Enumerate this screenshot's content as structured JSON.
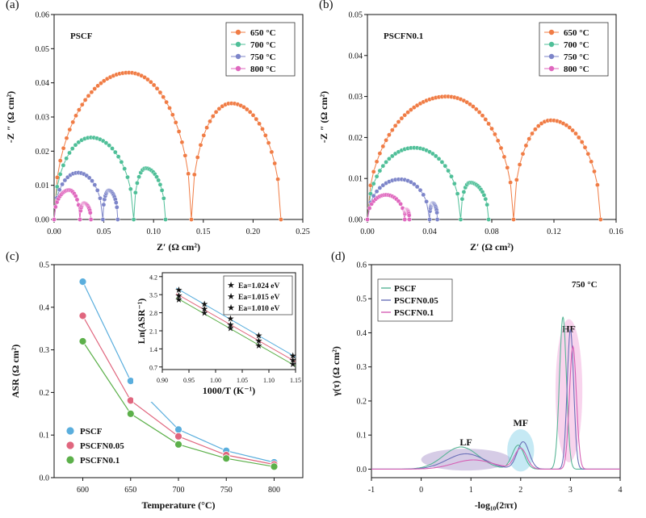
{
  "chart_data": [
    {
      "type": "scatter",
      "panel_label": "(a)",
      "sample_label": "PSCF",
      "xlabel": "Z′ (Ω cm²)",
      "ylabel": "-Z ″ (Ω cm²)",
      "xlim": [
        0,
        0.25
      ],
      "ylim": [
        0,
        0.06
      ],
      "xticks": [
        0.0,
        0.05,
        0.1,
        0.15,
        0.2,
        0.25
      ],
      "yticks": [
        0.0,
        0.01,
        0.02,
        0.03,
        0.04,
        0.05,
        0.06
      ],
      "legend_position": "top-right",
      "series": [
        {
          "name": "650 °C",
          "color": "#f07c45",
          "arcs": [
            {
              "x0": 0.0,
              "x1": 0.138,
              "h": 0.043,
              "xp": 0.075
            },
            {
              "x0": 0.138,
              "x1": 0.228,
              "h": 0.034,
              "xp": 0.178
            }
          ]
        },
        {
          "name": "700 °C",
          "color": "#4fbf98",
          "arcs": [
            {
              "x0": 0.0,
              "x1": 0.08,
              "h": 0.024,
              "xp": 0.037
            },
            {
              "x0": 0.08,
              "x1": 0.112,
              "h": 0.015,
              "xp": 0.092
            }
          ]
        },
        {
          "name": "750 °C",
          "color": "#7d85c9",
          "arcs": [
            {
              "x0": 0.0,
              "x1": 0.049,
              "h": 0.0137,
              "xp": 0.024
            },
            {
              "x0": 0.049,
              "x1": 0.064,
              "h": 0.0085,
              "xp": 0.055
            }
          ]
        },
        {
          "name": "800 °C",
          "color": "#df67be",
          "arcs": [
            {
              "x0": 0.0,
              "x1": 0.026,
              "h": 0.0086,
              "xp": 0.015
            },
            {
              "x0": 0.026,
              "x1": 0.037,
              "h": 0.0048,
              "xp": 0.03
            }
          ]
        }
      ]
    },
    {
      "type": "scatter",
      "panel_label": "(b)",
      "sample_label": "PSCFN0.1",
      "xlabel": "Z′ (Ω cm²)",
      "ylabel": "-Z ″ (Ω cm²)",
      "xlim": [
        0,
        0.16
      ],
      "ylim": [
        0,
        0.05
      ],
      "xticks": [
        0.0,
        0.04,
        0.08,
        0.12,
        0.16
      ],
      "yticks": [
        0.0,
        0.01,
        0.02,
        0.03,
        0.04,
        0.05
      ],
      "legend_position": "top-right",
      "series": [
        {
          "name": "650 °C",
          "color": "#f07c45",
          "arcs": [
            {
              "x0": 0.0,
              "x1": 0.094,
              "h": 0.03,
              "xp": 0.051
            },
            {
              "x0": 0.094,
              "x1": 0.15,
              "h": 0.0242,
              "xp": 0.118
            }
          ]
        },
        {
          "name": "700 °C",
          "color": "#4fbf98",
          "arcs": [
            {
              "x0": 0.0,
              "x1": 0.06,
              "h": 0.0175,
              "xp": 0.03
            },
            {
              "x0": 0.06,
              "x1": 0.078,
              "h": 0.009,
              "xp": 0.066
            }
          ]
        },
        {
          "name": "750 °C",
          "color": "#7d85c9",
          "arcs": [
            {
              "x0": 0.0,
              "x1": 0.04,
              "h": 0.0098,
              "xp": 0.021
            },
            {
              "x0": 0.04,
              "x1": 0.045,
              "h": 0.004,
              "xp": 0.042
            }
          ]
        },
        {
          "name": "800 °C",
          "color": "#df67be",
          "arcs": [
            {
              "x0": 0.0,
              "x1": 0.024,
              "h": 0.006,
              "xp": 0.012
            },
            {
              "x0": 0.024,
              "x1": 0.027,
              "h": 0.0025,
              "xp": 0.025
            }
          ]
        }
      ]
    },
    {
      "type": "line",
      "panel_label": "(c)",
      "xlabel": "Temperature (°C)",
      "ylabel": "ASR (Ω cm²)",
      "xlim": [
        570,
        830
      ],
      "ylim": [
        0,
        0.5
      ],
      "xticks": [
        600,
        650,
        700,
        750,
        800
      ],
      "yticks": [
        0.0,
        0.1,
        0.2,
        0.3,
        0.4,
        0.5
      ],
      "x": [
        600,
        650,
        700,
        750,
        800
      ],
      "legend_position": "bottom-left",
      "series": [
        {
          "name": "PSCF",
          "color": "#5aaedd",
          "values": [
            0.46,
            0.227,
            0.113,
            0.063,
            0.036
          ]
        },
        {
          "name": "PSCFN0.05",
          "color": "#e0667e",
          "values": [
            0.38,
            0.181,
            0.097,
            0.053,
            0.031
          ]
        },
        {
          "name": "PSCFN0.1",
          "color": "#5cb04a",
          "values": [
            0.32,
            0.15,
            0.078,
            0.045,
            0.026
          ]
        }
      ],
      "inset": {
        "type": "line",
        "xlabel": "1000/T (K⁻¹)",
        "ylabel": "Ln(ASR⁻¹)",
        "xlim": [
          0.9,
          1.15
        ],
        "ylim": [
          0.6,
          4.35
        ],
        "xticks": [
          0.9,
          0.95,
          1.0,
          1.05,
          1.1,
          1.15
        ],
        "yticks": [
          0.7,
          1.4,
          2.1,
          2.8,
          3.5,
          4.2
        ],
        "x": [
          0.931,
          0.979,
          1.028,
          1.081,
          1.145
        ],
        "legend_position": "top-right",
        "series": [
          {
            "name": "Ea=1.024 eV",
            "color": "#5cb04a",
            "values": [
              3.3,
              2.79,
              2.2,
              1.52,
              0.8
            ]
          },
          {
            "name": "Ea=1.015 eV",
            "color": "#e0667e",
            "values": [
              3.46,
              2.95,
              2.33,
              1.71,
              0.96
            ]
          },
          {
            "name": "Ea=1.010 eV",
            "color": "#5aaedd",
            "values": [
              3.68,
              3.13,
              2.57,
              1.91,
              1.13
            ]
          }
        ]
      }
    },
    {
      "type": "line",
      "panel_label": "(d)",
      "xlabel": "-log₁₀(2πτ)",
      "ylabel": "γ(τ) (Ω cm²)",
      "xlim": [
        -1,
        4
      ],
      "ylim": [
        -0.025,
        0.6
      ],
      "xticks": [
        -1,
        0,
        1,
        2,
        3,
        4
      ],
      "yticks": [
        0.0,
        0.1,
        0.2,
        0.3,
        0.4,
        0.5,
        0.6
      ],
      "temperature_label": "750 °C",
      "legend_position": "top-left",
      "regions": [
        {
          "label": "LF",
          "color": "#a58fc8"
        },
        {
          "label": "MF",
          "color": "#7fcfe6"
        },
        {
          "label": "HF",
          "color": "#f0a0d8"
        }
      ],
      "series": [
        {
          "name": "PSCF",
          "color": "#58b596",
          "peaks": [
            [
              0.8,
              0.065,
              0.35
            ],
            [
              1.95,
              0.07,
              0.12
            ],
            [
              2.85,
              0.447,
              0.07
            ]
          ]
        },
        {
          "name": "PSCFN0.05",
          "color": "#6a70b8",
          "peaks": [
            [
              0.9,
              0.045,
              0.38
            ],
            [
              2.05,
              0.08,
              0.12
            ],
            [
              3.0,
              0.41,
              0.065
            ]
          ]
        },
        {
          "name": "PSCFN0.1",
          "color": "#d65fb5",
          "peaks": [
            [
              1.05,
              0.027,
              0.4
            ],
            [
              2.0,
              0.06,
              0.12
            ],
            [
              3.05,
              0.36,
              0.07
            ]
          ]
        }
      ]
    }
  ]
}
